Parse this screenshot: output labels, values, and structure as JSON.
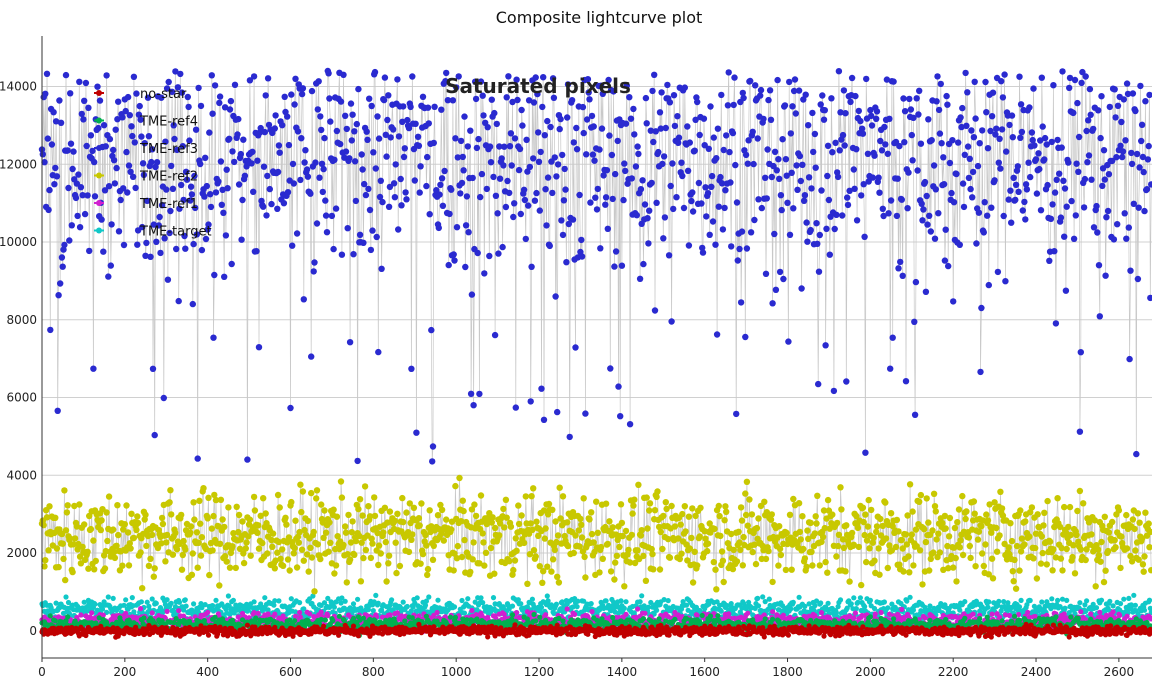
{
  "chart_data": {
    "type": "scatter",
    "title": "Composite lightcurve plot",
    "annotation": "Saturated  pixels",
    "xlim": [
      0,
      2680
    ],
    "ylim": [
      -700,
      15300
    ],
    "x_ticks": [
      "0",
      "200",
      "400",
      "600",
      "800",
      "1000",
      "1200",
      "1400",
      "1600",
      "1800",
      "2000",
      "2200",
      "2400",
      "2600"
    ],
    "y_ticks": [
      "0",
      "2000",
      "4000",
      "6000",
      "8000",
      "10000",
      "12000",
      "14000"
    ],
    "grid": "horizontal",
    "legend_position": "top-left",
    "series": [
      {
        "name": "no-star",
        "color": "#c00000",
        "n": 2680,
        "mean": 0,
        "spread": 60
      },
      {
        "name": "TME-ref4",
        "color": "#00b050",
        "n": 2680,
        "mean": 150,
        "spread": 90
      },
      {
        "name": "TME-ref3",
        "color": "#2a2ad0",
        "n": 2680,
        "mean": 12200,
        "spread": 1400,
        "connected": true
      },
      {
        "name": "TME-ref2",
        "color": "#c8c800",
        "n": 2680,
        "mean": 2450,
        "spread": 550,
        "connected": true
      },
      {
        "name": "TME-ref1",
        "color": "#d020d0",
        "n": 2680,
        "mean": 250,
        "spread": 110
      },
      {
        "name": "TME-target",
        "color": "#10c8c8",
        "n": 2680,
        "mean": 550,
        "spread": 140
      }
    ]
  }
}
